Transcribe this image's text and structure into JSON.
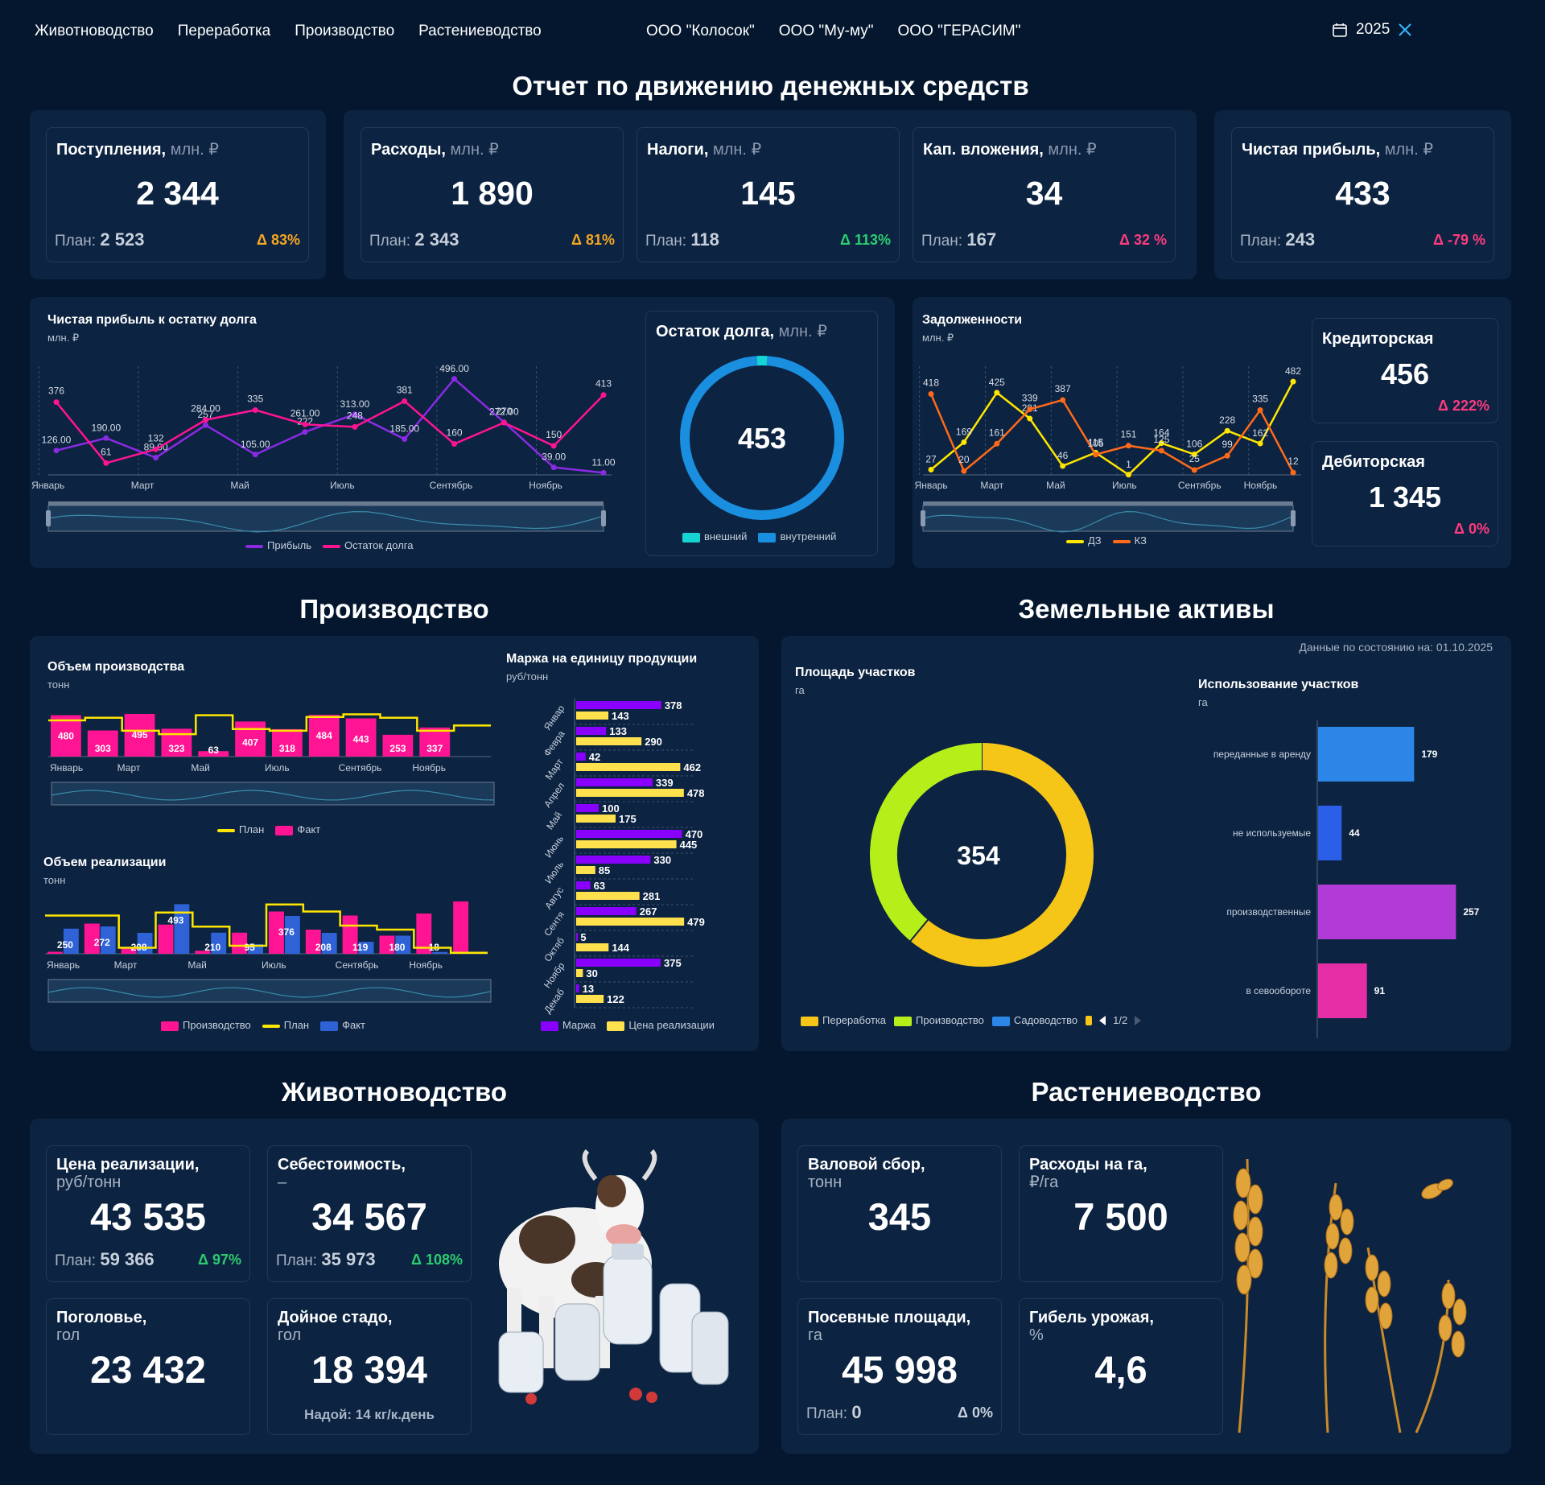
{
  "nav": {
    "items": [
      "Животноводство",
      "Переработка",
      "Производство",
      "Растениеводство"
    ],
    "orgs": [
      "ООО \"Колосок\"",
      "ООО \"Му-му\"",
      "ООО \"ГЕРАСИМ\""
    ],
    "year": "2025"
  },
  "colors": {
    "bg": "#04172e",
    "panel": "#0c2341",
    "orange": "#f5a623",
    "green": "#2ecc71",
    "pink": "#ff3b7f",
    "magenta": "#ff1493",
    "purple": "#8a2be2",
    "yellow": "#ffe600",
    "blue": "#2c86e8"
  },
  "sections": {
    "main": "Отчет по движению денежных средств",
    "production": "Производство",
    "land": "Земельные активы",
    "livestock": "Животноводство",
    "crops": "Растениеводство"
  },
  "kpis": [
    {
      "title": "Поступления,",
      "unit": "млн. ₽",
      "value": "2 344",
      "plan_label": "План:",
      "plan": "2 523",
      "delta": "Δ 83%"
    },
    {
      "title": "Расходы,",
      "unit": "млн. ₽",
      "value": "1 890",
      "plan_label": "План:",
      "plan": "2 343",
      "delta": "Δ 81%"
    },
    {
      "title": "Налоги,",
      "unit": "млн. ₽",
      "value": "145",
      "plan_label": "План:",
      "plan": "118",
      "delta": "Δ 113%"
    },
    {
      "title": "Кап. вложения,",
      "unit": "млн. ₽",
      "value": "34",
      "plan_label": "План:",
      "plan": "167",
      "delta": "Δ 32 %"
    },
    {
      "title": "Чистая прибыль,",
      "unit": "млн. ₽",
      "value": "433",
      "plan_label": "План:",
      "plan": "243",
      "delta": "Δ -79 %"
    }
  ],
  "profit_chart": {
    "title": "Чистая прибыль к остатку долга",
    "unit": "млн. ₽",
    "chart_data": {
      "type": "line",
      "x": [
        "Январь",
        "Февраль",
        "Март",
        "Апрель",
        "Май",
        "Июнь",
        "Июль",
        "Август",
        "Сентябрь",
        "Октябрь",
        "Ноябрь",
        "Декабрь"
      ],
      "x_ticks": [
        "Январь",
        "Март",
        "Май",
        "Июль",
        "Сентябрь",
        "Ноябрь"
      ],
      "series": [
        {
          "name": "Прибыль",
          "values": [
            126,
            190,
            89,
            257,
            105,
            222,
            313,
            185,
            496,
            272,
            39,
            11
          ],
          "labels": [
            "126.00",
            "190.00",
            "89.00",
            "257",
            "105.00",
            "222",
            "313.00",
            "185.00",
            "496.00",
            "272.00",
            "39.00",
            "11.00"
          ]
        },
        {
          "name": "Остаток долга",
          "values": [
            376,
            61,
            132,
            284,
            335,
            261,
            248,
            381,
            160,
            270,
            150,
            413
          ],
          "labels": [
            "376",
            "61",
            "132",
            "284.00",
            "335",
            "261.00",
            "248",
            "381",
            "160",
            "270",
            "150",
            "413"
          ]
        }
      ],
      "ylim": [
        0,
        520
      ]
    }
  },
  "debt_ring": {
    "title": "Остаток долга,",
    "unit": "млн. ₽",
    "value": "453",
    "chart_data": {
      "type": "pie",
      "labels": [
        "внешний",
        "внутренний"
      ],
      "values": [
        2,
        98
      ]
    }
  },
  "debts_chart": {
    "title": "Задолженности",
    "unit": "млн. ₽",
    "chart_data": {
      "type": "line",
      "x": [
        "Январь",
        "Февраль",
        "Март",
        "Апрель",
        "Май",
        "Июнь",
        "Июль",
        "Август",
        "Сентябрь",
        "Октябрь",
        "Ноябрь",
        "Декабрь"
      ],
      "x_ticks": [
        "Январь",
        "Март",
        "Май",
        "Июль",
        "Сентябрь",
        "Ноябрь"
      ],
      "series": [
        {
          "name": "ДЗ",
          "values": [
            27,
            169,
            425,
            291,
            46,
            115,
            1,
            164,
            106,
            228,
            162,
            482
          ]
        },
        {
          "name": "КЗ",
          "values": [
            418,
            20,
            161,
            339,
            387,
            105,
            151,
            125,
            25,
            99,
            335,
            12
          ]
        }
      ],
      "ylim": [
        0,
        520
      ]
    }
  },
  "payables": {
    "title": "Кредиторская",
    "value": "456",
    "delta": "Δ 222%"
  },
  "receivables": {
    "title": "Дебиторская",
    "value": "1 345",
    "delta": "Δ 0%"
  },
  "prod_volume": {
    "title": "Объем производства",
    "unit": "тонн",
    "chart_data": {
      "type": "bar",
      "x_ticks": [
        "Январь",
        "Март",
        "Май",
        "Июль",
        "Сентябрь",
        "Ноябрь"
      ],
      "series": [
        {
          "name": "План",
          "values": [
            420,
            450,
            300,
            260,
            480,
            320,
            300,
            460,
            490,
            450,
            300,
            360
          ]
        },
        {
          "name": "Факт",
          "values": [
            480,
            303,
            495,
            323,
            63,
            407,
            318,
            484,
            443,
            253,
            337,
            null
          ]
        }
      ],
      "ylim": [
        0,
        560
      ]
    }
  },
  "sales_volume": {
    "title": "Объем реализации",
    "unit": "тонн",
    "chart_data": {
      "type": "bar",
      "x_ticks": [
        "Январь",
        "Март",
        "Май",
        "Июль",
        "Сентябрь",
        "Ноябрь"
      ],
      "series": [
        {
          "name": "Производство",
          "values": [
            20,
            300,
            60,
            290,
            30,
            210,
            420,
            240,
            380,
            180,
            400,
            520
          ]
        },
        {
          "name": "План",
          "values": [
            380,
            380,
            60,
            410,
            270,
            80,
            490,
            420,
            280,
            240,
            60,
            10
          ]
        },
        {
          "name": "Факт",
          "values": [
            250,
            272,
            208,
            493,
            210,
            95,
            376,
            208,
            119,
            180,
            18,
            0
          ]
        }
      ],
      "ylim": [
        0,
        560
      ]
    }
  },
  "margin": {
    "title": "Маржа на единицу продукции",
    "unit": "руб/тонн",
    "chart_data": {
      "type": "bar",
      "categories": [
        "Январь",
        "Февраль",
        "Март",
        "Апрель",
        "Май",
        "Июнь",
        "Июль",
        "Август",
        "Сентябрь",
        "Октябрь",
        "Ноябрь",
        "Декабрь"
      ],
      "cat_labels": [
        "Январ",
        "Февра",
        "Март",
        "Апрел",
        "Май",
        "Июнь",
        "Июль",
        "Авгус",
        "Сентя",
        "Октяб",
        "Ноябр",
        "Декаб"
      ],
      "series": [
        {
          "name": "Маржа",
          "values": [
            378,
            133,
            42,
            339,
            100,
            470,
            330,
            63,
            267,
            5,
            375,
            13
          ]
        },
        {
          "name": "Цена реализации",
          "values": [
            143,
            290,
            462,
            478,
            175,
            445,
            85,
            281,
            479,
            144,
            30,
            122
          ]
        }
      ],
      "xlim": [
        0,
        500
      ]
    }
  },
  "land": {
    "date_label": "Данные по состоянию на: 01.10.2025",
    "area_title": "Площадь участков",
    "area_unit": "га",
    "total": "354",
    "area_chart": {
      "type": "pie",
      "labels": [
        "Переработка",
        "Производство",
        "Садоводство"
      ],
      "values": [
        61,
        39,
        0
      ],
      "colors": [
        "#f5c518",
        "#b6ee1a",
        "#2c86e8"
      ]
    },
    "legend_page": "1/2",
    "usage_title": "Использование участков",
    "usage_unit": "га",
    "usage_chart": {
      "type": "bar",
      "categories": [
        "переданные в аренду",
        "не используемые",
        "производственные",
        "в севообороте"
      ],
      "values": [
        179,
        44,
        257,
        91
      ],
      "colors": [
        "#2c86e8",
        "#2c5fe8",
        "#b23ad6",
        "#e52ea6"
      ]
    }
  },
  "livestock": [
    {
      "title": "Цена реализации,",
      "unit": "руб/тонн",
      "value": "43 535",
      "plan_label": "План:",
      "plan": "59 366",
      "delta": "Δ 97%"
    },
    {
      "title": "Себестоимость,",
      "unit": "–",
      "value": "34 567",
      "plan_label": "План:",
      "plan": "35 973",
      "delta": "Δ 108%"
    },
    {
      "title": "Поголовье,",
      "unit": "гол",
      "value": "23 432"
    },
    {
      "title": "Дойное стадо,",
      "unit": "гол",
      "value": "18 394",
      "note": "Надой: 14 кг/к.день"
    }
  ],
  "crops": [
    {
      "title": "Валовой сбор,",
      "unit": "тонн",
      "value": "345"
    },
    {
      "title": "Расходы на га,",
      "unit": "₽/га",
      "value": "7 500"
    },
    {
      "title": "Посевные площади,",
      "unit": "га",
      "value": "45 998",
      "plan_label": "План:",
      "plan": "0",
      "delta": "Δ 0%"
    },
    {
      "title": "Гибель урожая,",
      "unit": "%",
      "value": "4,6"
    }
  ]
}
